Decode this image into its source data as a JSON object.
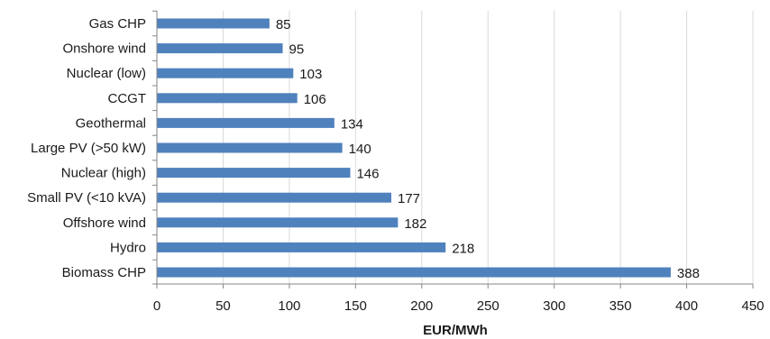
{
  "chart_data": {
    "type": "bar",
    "orientation": "horizontal",
    "categories": [
      "Gas CHP",
      "Onshore wind",
      "Nuclear (low)",
      "CCGT",
      "Geothermal",
      "Large PV (>50 kW)",
      "Nuclear (high)",
      "Small PV (<10 kVA)",
      "Offshore wind",
      "Hydro",
      "Biomass CHP"
    ],
    "values": [
      85,
      95,
      103,
      106,
      134,
      140,
      146,
      177,
      182,
      218,
      388
    ],
    "xlabel": "EUR/MWh",
    "ylabel": "",
    "title": "",
    "xlim": [
      0,
      450
    ],
    "xticks": [
      0,
      50,
      100,
      150,
      200,
      250,
      300,
      350,
      400,
      450
    ],
    "grid": "vertical",
    "legend": "none",
    "colors": {
      "bar": "#4F81BD",
      "grid": "#D9D9D9",
      "axis": "#868686"
    }
  }
}
